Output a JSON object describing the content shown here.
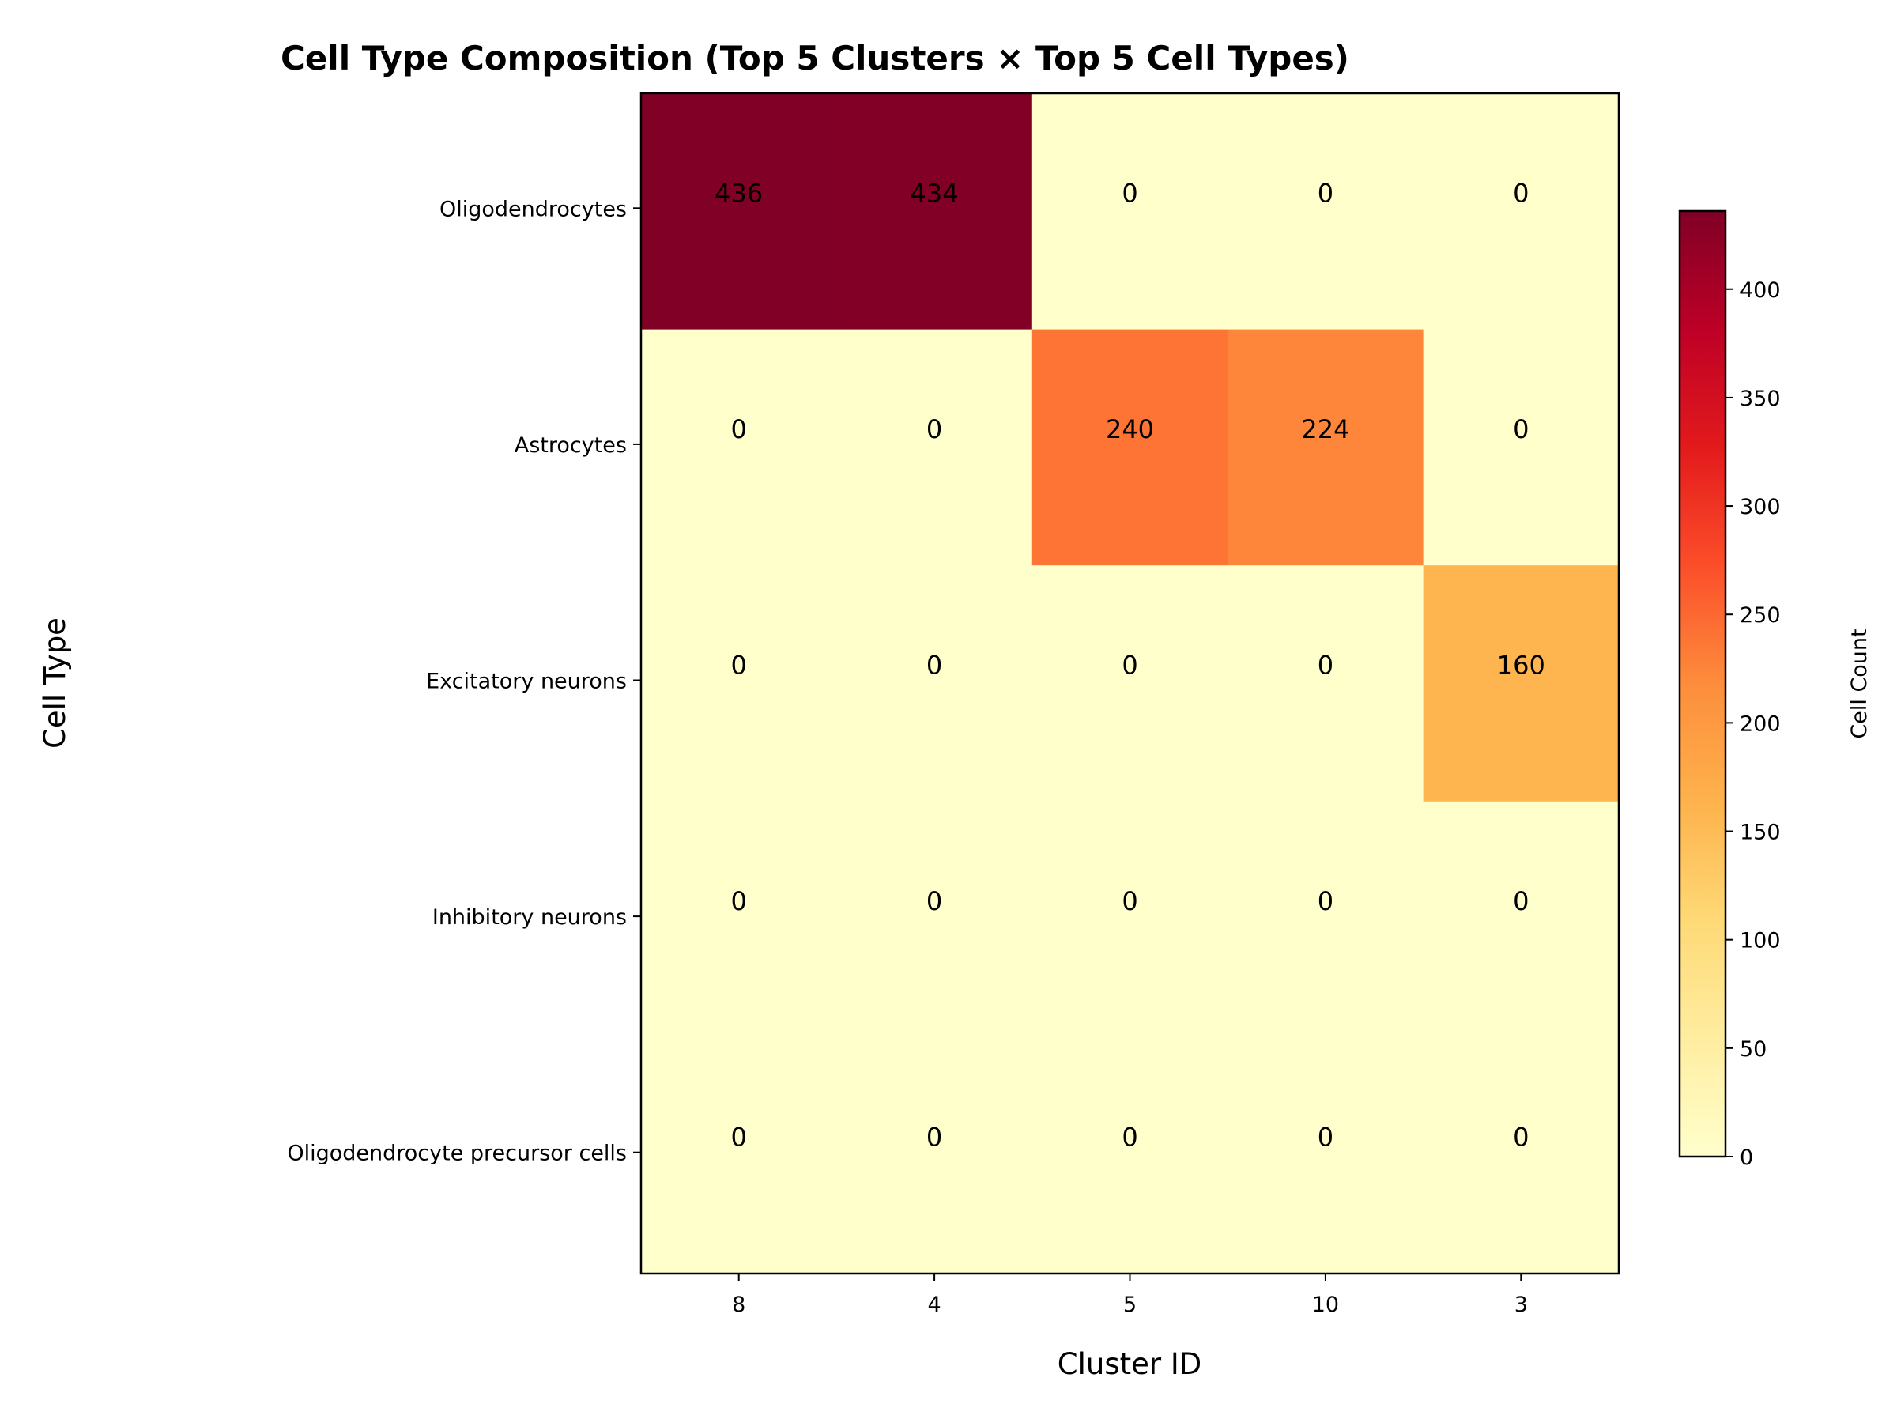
{
  "chart_data": {
    "type": "heatmap",
    "title": "Cell Type Composition (Top 5 Clusters × Top 5 Cell Types)",
    "xlabel": "Cluster ID",
    "ylabel": "Cell Type",
    "x_categories": [
      "8",
      "4",
      "5",
      "10",
      "3"
    ],
    "y_categories": [
      "Oligodendrocytes",
      "Astrocytes",
      "Excitatory neurons",
      "Inhibitory neurons",
      "Oligodendrocyte precursor cells"
    ],
    "values": [
      [
        436,
        434,
        0,
        0,
        0
      ],
      [
        0,
        0,
        240,
        224,
        0
      ],
      [
        0,
        0,
        0,
        0,
        160
      ],
      [
        0,
        0,
        0,
        0,
        0
      ],
      [
        0,
        0,
        0,
        0,
        0
      ]
    ],
    "colorbar": {
      "label": "Cell Count",
      "colormap": "YlOrRd",
      "range": [
        0,
        436
      ],
      "ticks": [
        0,
        50,
        100,
        150,
        200,
        250,
        300,
        350,
        400
      ]
    },
    "annotations": "cell values shown in each cell",
    "grid": false
  }
}
